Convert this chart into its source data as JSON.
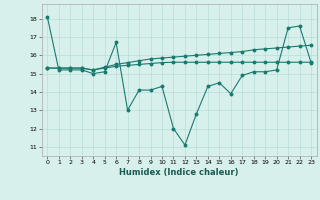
{
  "title": "",
  "xlabel": "Humidex (Indice chaleur)",
  "xlim": [
    -0.5,
    23.5
  ],
  "ylim": [
    10.5,
    18.8
  ],
  "yticks": [
    11,
    12,
    13,
    14,
    15,
    16,
    17,
    18
  ],
  "xticks": [
    0,
    1,
    2,
    3,
    4,
    5,
    6,
    7,
    8,
    9,
    10,
    11,
    12,
    13,
    14,
    15,
    16,
    17,
    18,
    19,
    20,
    21,
    22,
    23
  ],
  "bg_color": "#d8f0ec",
  "grid_color": "#b8ddd8",
  "line_color": "#1a7a6e",
  "lines": [
    [
      18.1,
      15.2,
      15.2,
      15.2,
      15.0,
      15.1,
      16.7,
      13.0,
      14.1,
      14.1,
      14.3,
      12.0,
      11.1,
      12.8,
      14.3,
      14.5,
      13.9,
      14.9,
      15.1,
      15.1,
      15.2,
      17.5,
      17.6,
      15.6
    ],
    [
      15.3,
      15.3,
      15.3,
      15.3,
      15.2,
      15.35,
      15.5,
      15.6,
      15.7,
      15.8,
      15.85,
      15.9,
      15.95,
      16.0,
      16.05,
      16.1,
      16.15,
      16.2,
      16.3,
      16.35,
      16.4,
      16.45,
      16.5,
      16.55
    ],
    [
      15.3,
      15.3,
      15.3,
      15.3,
      15.2,
      15.3,
      15.4,
      15.45,
      15.5,
      15.55,
      15.6,
      15.62,
      15.62,
      15.62,
      15.62,
      15.62,
      15.62,
      15.62,
      15.62,
      15.62,
      15.62,
      15.62,
      15.62,
      15.62
    ]
  ]
}
